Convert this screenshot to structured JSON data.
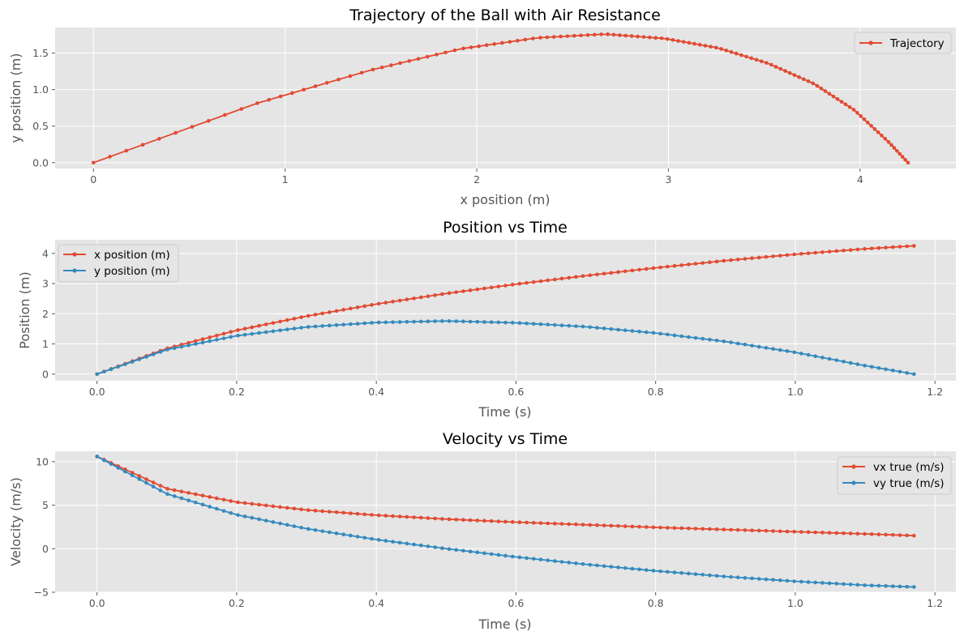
{
  "colors": {
    "series1": "#E24A33",
    "series2": "#348ABD",
    "axes_bg": "#E5E5E5",
    "grid": "#FFFFFF",
    "tick_text": "#555555",
    "label_text": "#555555"
  },
  "chart_data": [
    {
      "type": "line",
      "title": "Trajectory of the Ball with Air Resistance",
      "xlabel": "x position (m)",
      "ylabel": "y position (m)",
      "xlim": [
        -0.2,
        4.5
      ],
      "ylim": [
        -0.08,
        1.85
      ],
      "xticks": [
        0,
        1,
        2,
        3,
        4
      ],
      "xtick_labels": [
        "0",
        "1",
        "2",
        "3",
        "4"
      ],
      "yticks": [
        0,
        0.5,
        1,
        1.5
      ],
      "ytick_labels": [
        "0.0",
        "0.5",
        "1.0",
        "1.5"
      ],
      "grid": true,
      "legend": "upper-right",
      "series": [
        {
          "name": "Trajectory",
          "color": "#E24A33",
          "marker": "point",
          "sample_from": "time",
          "x_series": "x position (m)",
          "y_series": "y position (m)"
        }
      ]
    },
    {
      "type": "line",
      "title": "Position vs Time",
      "xlabel": "Time (s)",
      "ylabel": "Position (m)",
      "xlim": [
        -0.06,
        1.23
      ],
      "ylim": [
        -0.22,
        4.45
      ],
      "xticks": [
        0,
        0.2,
        0.4,
        0.6,
        0.8,
        1.0,
        1.2
      ],
      "xtick_labels": [
        "0.0",
        "0.2",
        "0.4",
        "0.6",
        "0.8",
        "1.0",
        "1.2"
      ],
      "yticks": [
        0,
        1,
        2,
        3,
        4
      ],
      "ytick_labels": [
        "0",
        "1",
        "2",
        "3",
        "4"
      ],
      "grid": true,
      "legend": "upper-left",
      "sample_count": 117,
      "t_range": [
        0,
        1.17
      ],
      "series": [
        {
          "name": "x position (m)",
          "color": "#E24A33",
          "marker": "point",
          "t": [
            0,
            0.1,
            0.2,
            0.3,
            0.4,
            0.5,
            0.6,
            0.7,
            0.8,
            0.9,
            1.0,
            1.1,
            1.17
          ],
          "values": [
            0,
            0.85,
            1.45,
            1.92,
            2.32,
            2.67,
            2.98,
            3.26,
            3.52,
            3.76,
            3.97,
            4.15,
            4.25
          ]
        },
        {
          "name": "y position (m)",
          "color": "#348ABD",
          "marker": "point",
          "t": [
            0,
            0.1,
            0.2,
            0.3,
            0.4,
            0.5,
            0.6,
            0.7,
            0.8,
            0.9,
            1.0,
            1.1,
            1.17
          ],
          "values": [
            0,
            0.81,
            1.27,
            1.56,
            1.71,
            1.76,
            1.7,
            1.57,
            1.36,
            1.08,
            0.72,
            0.28,
            0.0
          ]
        }
      ]
    },
    {
      "type": "line",
      "title": "Velocity vs Time",
      "xlabel": "Time (s)",
      "ylabel": "Velocity (m/s)",
      "xlim": [
        -0.06,
        1.23
      ],
      "ylim": [
        -5.0,
        11.2
      ],
      "xticks": [
        0,
        0.2,
        0.4,
        0.6,
        0.8,
        1.0,
        1.2
      ],
      "xtick_labels": [
        "0.0",
        "0.2",
        "0.4",
        "0.6",
        "0.8",
        "1.0",
        "1.2"
      ],
      "yticks": [
        -5,
        0,
        5,
        10
      ],
      "ytick_labels": [
        "−5",
        "0",
        "5",
        "10"
      ],
      "grid": true,
      "legend": "upper-right",
      "sample_count": 117,
      "t_range": [
        0,
        1.17
      ],
      "series": [
        {
          "name": "vx true (m/s)",
          "color": "#E24A33",
          "marker": "point",
          "t": [
            0,
            0.1,
            0.2,
            0.3,
            0.4,
            0.5,
            0.6,
            0.7,
            0.8,
            0.9,
            1.0,
            1.1,
            1.17
          ],
          "values": [
            10.6,
            6.9,
            5.35,
            4.45,
            3.85,
            3.4,
            3.05,
            2.75,
            2.45,
            2.2,
            1.95,
            1.7,
            1.5
          ]
        },
        {
          "name": "vy true (m/s)",
          "color": "#348ABD",
          "marker": "point",
          "t": [
            0,
            0.1,
            0.2,
            0.3,
            0.4,
            0.5,
            0.6,
            0.7,
            0.8,
            0.9,
            1.0,
            1.1,
            1.17
          ],
          "values": [
            10.6,
            6.3,
            3.9,
            2.3,
            1.05,
            0.0,
            -0.95,
            -1.8,
            -2.55,
            -3.2,
            -3.75,
            -4.2,
            -4.4
          ]
        }
      ]
    }
  ]
}
